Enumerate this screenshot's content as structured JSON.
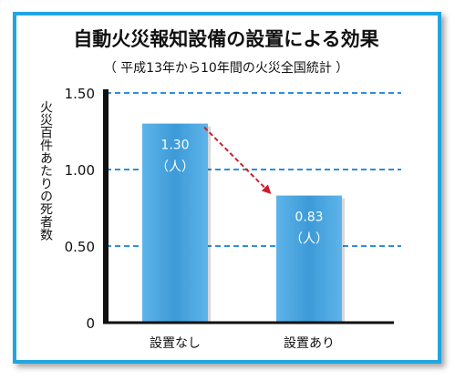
{
  "chart_data": {
    "type": "bar",
    "title": "自動火災報知設備の設置による効果",
    "subtitle": "（ 平成13年から10年間の火災全国統計 ）",
    "ylabel": "火災百件あたりの死者数",
    "xlabel": "",
    "categories": [
      "設置なし",
      "設置あり"
    ],
    "values": [
      1.3,
      0.83
    ],
    "value_labels": [
      [
        "1.30",
        "（人）"
      ],
      [
        "0.83",
        "（人）"
      ]
    ],
    "unit": "（人）",
    "ylim": [
      0,
      1.5
    ],
    "yticks": [
      0,
      0.5,
      1.0,
      1.5
    ],
    "ytick_labels": [
      "0",
      "0.50",
      "1.00",
      "1.50"
    ],
    "grid": "dashed horizontal",
    "arrow": "from 設置なし to 設置あり",
    "colors": {
      "frame": "#20a5e3",
      "bar": "#4aa3dc",
      "grid": "#2f8fd8",
      "arrow": "#cc1f2d",
      "axis": "#111111"
    }
  }
}
